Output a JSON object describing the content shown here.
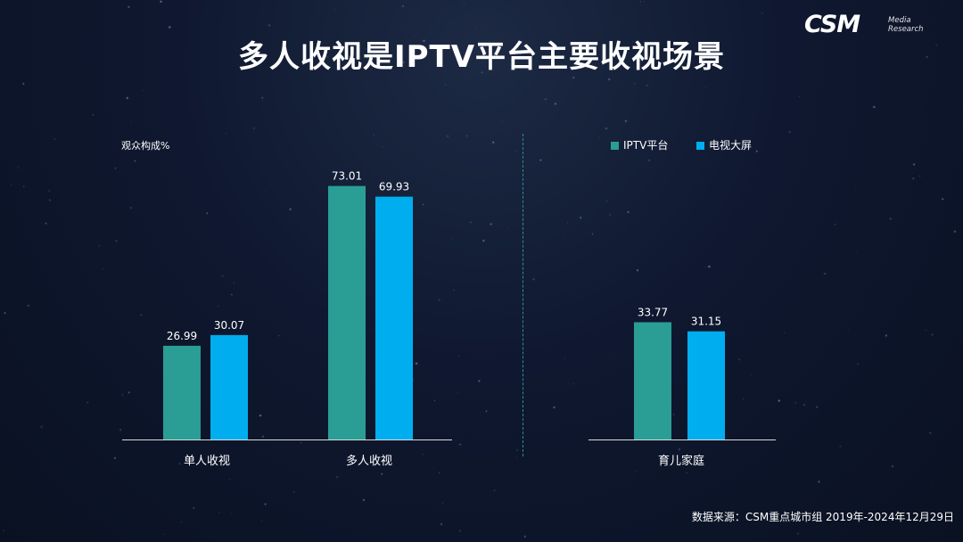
{
  "title": "多人收视是IPTV平台主要收视场景",
  "logo": {
    "main": "CSM",
    "sub_line1": "Media",
    "sub_line2": "Research"
  },
  "ylabel": "观众构成%",
  "legend": [
    {
      "name": "IPTV平台",
      "color": "#2a9d95"
    },
    {
      "name": "电视大屏",
      "color": "#00aeef"
    }
  ],
  "footer": "数据来源：CSM重点城市组 2019年-2024年12月29日",
  "chart_data": [
    {
      "type": "bar",
      "categories": [
        "单人收视",
        "多人收视"
      ],
      "series": [
        {
          "name": "IPTV平台",
          "values": [
            26.99,
            73.01
          ],
          "color": "#2a9d95"
        },
        {
          "name": "电视大屏",
          "values": [
            30.07,
            69.93
          ],
          "color": "#00aeef"
        }
      ],
      "ylabel": "观众构成%",
      "ylim": [
        0,
        80
      ],
      "grid": false
    },
    {
      "type": "bar",
      "categories": [
        "育儿家庭"
      ],
      "series": [
        {
          "name": "IPTV平台",
          "values": [
            33.77
          ],
          "color": "#2a9d95"
        },
        {
          "name": "电视大屏",
          "values": [
            31.15
          ],
          "color": "#00aeef"
        }
      ],
      "ylim": [
        0,
        80
      ],
      "grid": false
    }
  ]
}
